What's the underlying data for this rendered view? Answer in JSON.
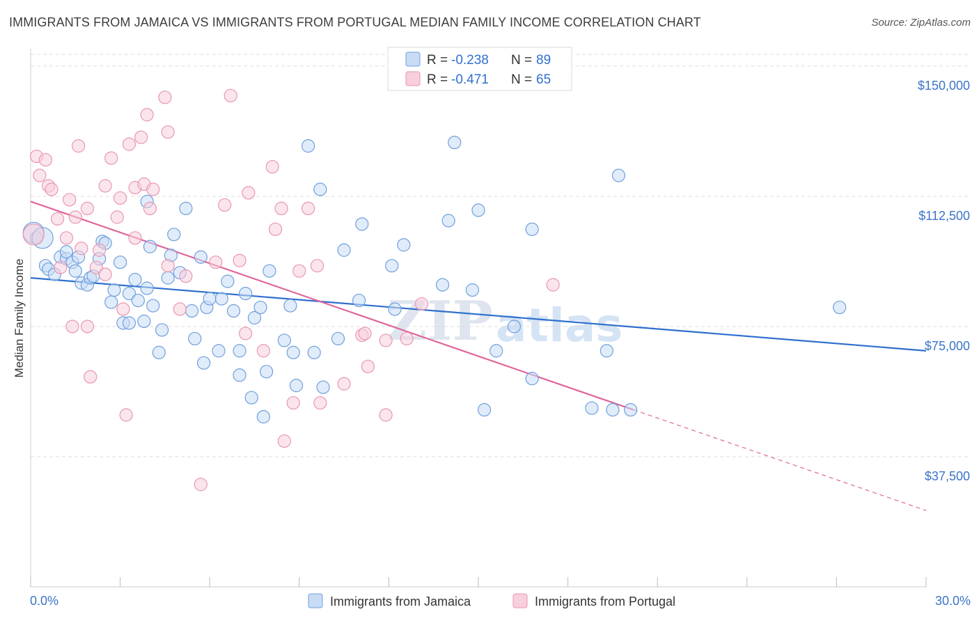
{
  "title": "IMMIGRANTS FROM JAMAICA VS IMMIGRANTS FROM PORTUGAL MEDIAN FAMILY INCOME CORRELATION CHART",
  "source": "Source: ZipAtlas.com",
  "watermark": {
    "zip": "ZIP",
    "atlas": "atlas"
  },
  "colors": {
    "jamaica_fill": "#c9dcf5",
    "jamaica_stroke": "#6f9fdc",
    "jamaica_line": "#2e6fce",
    "portugal_fill": "#f8cfdc",
    "portugal_stroke": "#e896b1",
    "portugal_line": "#e0649a",
    "tick_text": "#3b74c8",
    "grid": "#dddddd"
  },
  "legend": {
    "rows": [
      {
        "r_label": "R =",
        "r_value": "-0.238",
        "n_label": "N =",
        "n_value": "89"
      },
      {
        "r_label": "R =",
        "r_value": "-0.471",
        "n_label": "N =",
        "n_value": "65"
      }
    ]
  },
  "bottom_legend": [
    "Immigrants from Jamaica",
    "Immigrants from Portugal"
  ],
  "chart_data": {
    "type": "scatter",
    "title": "IMMIGRANTS FROM JAMAICA VS IMMIGRANTS FROM PORTUGAL MEDIAN FAMILY INCOME CORRELATION CHART",
    "xlabel": "",
    "ylabel": "Median Family Income",
    "xlim": [
      0,
      30
    ],
    "ylim": [
      0,
      155000
    ],
    "x_tick_labels": [
      "0.0%",
      "30.0%"
    ],
    "y_ticks": [
      37500,
      75000,
      112500,
      150000
    ],
    "y_tick_labels": [
      "$37,500",
      "$75,000",
      "$112,500",
      "$150,000"
    ],
    "grid": true,
    "legend_position": "top-center",
    "series": [
      {
        "name": "Immigrants from Jamaica",
        "r": -0.238,
        "n": 89,
        "trend": {
          "x": [
            0,
            30
          ],
          "y": [
            89000,
            68000
          ]
        },
        "points": [
          [
            0.1,
            102000
          ],
          [
            0.2,
            100500
          ],
          [
            0.5,
            92500
          ],
          [
            0.6,
            91500
          ],
          [
            0.8,
            90000
          ],
          [
            1.0,
            95000
          ],
          [
            1.2,
            94500
          ],
          [
            1.2,
            96500
          ],
          [
            1.4,
            93500
          ],
          [
            1.5,
            91000
          ],
          [
            1.6,
            95000
          ],
          [
            1.7,
            87500
          ],
          [
            1.9,
            87000
          ],
          [
            2.0,
            89000
          ],
          [
            2.1,
            89500
          ],
          [
            2.3,
            94500
          ],
          [
            2.4,
            99500
          ],
          [
            2.5,
            99000
          ],
          [
            2.7,
            82000
          ],
          [
            2.8,
            85500
          ],
          [
            3.0,
            93500
          ],
          [
            3.1,
            76000
          ],
          [
            3.3,
            84500
          ],
          [
            3.3,
            76000
          ],
          [
            3.5,
            88500
          ],
          [
            3.6,
            82500
          ],
          [
            3.8,
            76500
          ],
          [
            3.9,
            86000
          ],
          [
            3.9,
            111000
          ],
          [
            4.0,
            98000
          ],
          [
            4.1,
            81000
          ],
          [
            4.3,
            67500
          ],
          [
            4.4,
            74000
          ],
          [
            4.6,
            89000
          ],
          [
            4.7,
            95500
          ],
          [
            4.8,
            101500
          ],
          [
            5.0,
            90500
          ],
          [
            5.2,
            109000
          ],
          [
            5.4,
            79500
          ],
          [
            5.5,
            71500
          ],
          [
            5.7,
            95000
          ],
          [
            5.8,
            64500
          ],
          [
            5.9,
            80500
          ],
          [
            6.0,
            83000
          ],
          [
            6.3,
            68000
          ],
          [
            6.4,
            83000
          ],
          [
            6.6,
            88000
          ],
          [
            6.8,
            79500
          ],
          [
            7.0,
            68000
          ],
          [
            7.0,
            61000
          ],
          [
            7.2,
            84500
          ],
          [
            7.4,
            54500
          ],
          [
            7.5,
            77500
          ],
          [
            7.7,
            80500
          ],
          [
            7.8,
            49000
          ],
          [
            7.9,
            62000
          ],
          [
            8.0,
            91000
          ],
          [
            8.5,
            71000
          ],
          [
            8.7,
            81000
          ],
          [
            8.8,
            67500
          ],
          [
            8.9,
            58000
          ],
          [
            9.3,
            127000
          ],
          [
            9.5,
            67500
          ],
          [
            9.7,
            114500
          ],
          [
            9.8,
            57500
          ],
          [
            10.3,
            71500
          ],
          [
            10.5,
            97000
          ],
          [
            11.0,
            82500
          ],
          [
            11.1,
            104500
          ],
          [
            12.1,
            92500
          ],
          [
            12.2,
            80000
          ],
          [
            12.5,
            98500
          ],
          [
            13.8,
            87000
          ],
          [
            14.0,
            105500
          ],
          [
            14.2,
            128000
          ],
          [
            14.8,
            85500
          ],
          [
            15.0,
            108500
          ],
          [
            15.2,
            51000
          ],
          [
            15.6,
            68000
          ],
          [
            16.2,
            75000
          ],
          [
            16.8,
            103000
          ],
          [
            16.8,
            60000
          ],
          [
            18.8,
            51500
          ],
          [
            19.3,
            68000
          ],
          [
            19.5,
            51000
          ],
          [
            19.7,
            118500
          ],
          [
            20.1,
            51000
          ],
          [
            27.1,
            80500
          ],
          [
            0.4,
            100500
          ]
        ]
      },
      {
        "name": "Immigrants from Portugal",
        "r": -0.471,
        "n": 65,
        "trend": {
          "x": [
            0,
            20.2
          ],
          "y": [
            111000,
            51000
          ]
        },
        "trend_dashed": {
          "x": [
            20.2,
            30
          ],
          "y": [
            51000,
            22000
          ]
        },
        "points": [
          [
            0.1,
            101500
          ],
          [
            0.2,
            124000
          ],
          [
            0.3,
            118500
          ],
          [
            0.5,
            123000
          ],
          [
            0.6,
            115500
          ],
          [
            0.7,
            114500
          ],
          [
            0.9,
            106000
          ],
          [
            1.0,
            92000
          ],
          [
            1.2,
            100500
          ],
          [
            1.3,
            111500
          ],
          [
            1.4,
            75000
          ],
          [
            1.5,
            106500
          ],
          [
            1.6,
            127000
          ],
          [
            1.7,
            97500
          ],
          [
            1.9,
            109000
          ],
          [
            1.9,
            75000
          ],
          [
            2.0,
            60500
          ],
          [
            2.2,
            92000
          ],
          [
            2.3,
            97000
          ],
          [
            2.5,
            90000
          ],
          [
            2.5,
            115500
          ],
          [
            2.7,
            123500
          ],
          [
            2.9,
            106500
          ],
          [
            3.0,
            112000
          ],
          [
            3.1,
            80000
          ],
          [
            3.2,
            49500
          ],
          [
            3.3,
            127500
          ],
          [
            3.5,
            115000
          ],
          [
            3.5,
            100500
          ],
          [
            3.7,
            129500
          ],
          [
            3.8,
            116000
          ],
          [
            3.9,
            136000
          ],
          [
            4.0,
            109000
          ],
          [
            4.1,
            114500
          ],
          [
            4.5,
            141000
          ],
          [
            4.6,
            92500
          ],
          [
            4.6,
            131000
          ],
          [
            5.0,
            80000
          ],
          [
            5.2,
            89500
          ],
          [
            5.7,
            29500
          ],
          [
            6.2,
            93500
          ],
          [
            6.5,
            110000
          ],
          [
            6.7,
            141500
          ],
          [
            7.0,
            94000
          ],
          [
            7.2,
            73000
          ],
          [
            7.3,
            113500
          ],
          [
            7.8,
            68000
          ],
          [
            8.1,
            121000
          ],
          [
            8.2,
            103000
          ],
          [
            8.4,
            109000
          ],
          [
            8.5,
            42000
          ],
          [
            8.8,
            53000
          ],
          [
            9.0,
            91000
          ],
          [
            9.3,
            109000
          ],
          [
            9.6,
            92500
          ],
          [
            9.7,
            53000
          ],
          [
            10.5,
            58500
          ],
          [
            11.1,
            72500
          ],
          [
            11.2,
            73000
          ],
          [
            11.3,
            63500
          ],
          [
            11.9,
            71000
          ],
          [
            11.9,
            49500
          ],
          [
            12.6,
            71500
          ],
          [
            13.1,
            81500
          ],
          [
            17.5,
            87000
          ]
        ]
      }
    ]
  }
}
